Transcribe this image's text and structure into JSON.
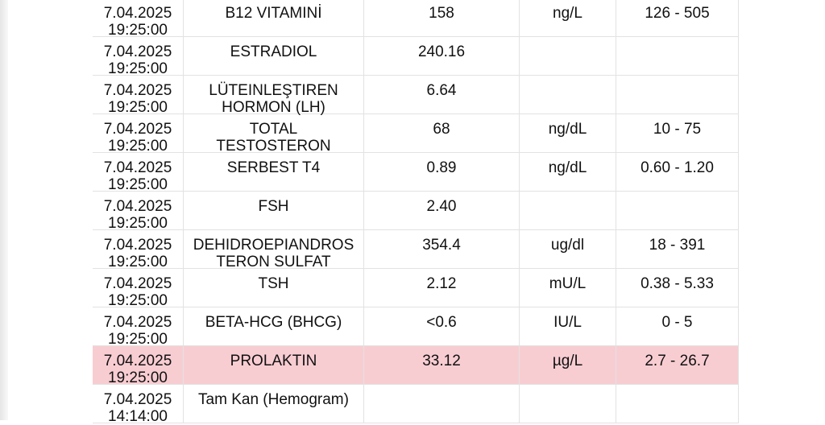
{
  "table": {
    "rows": [
      {
        "date": "7.04.2025",
        "time": "19:25:00",
        "test": [
          "B12  VITAMINİ"
        ],
        "value": "158",
        "unit": "ng/L",
        "range": "126 - 505"
      },
      {
        "date": "7.04.2025",
        "time": "19:25:00",
        "test": [
          "ESTRADIOL"
        ],
        "value": "240.16"
      },
      {
        "date": "7.04.2025",
        "time": "19:25:00",
        "test": [
          "LÜTEINLEŞTIREN",
          "HORMON (LH)"
        ],
        "value": "6.64"
      },
      {
        "date": "7.04.2025",
        "time": "19:25:00",
        "test": [
          "TOTAL",
          "TESTOSTERON"
        ],
        "value": "68",
        "unit": "ng/dL",
        "range": "10 - 75"
      },
      {
        "date": "7.04.2025",
        "time": "19:25:00",
        "test": [
          "SERBEST T4"
        ],
        "value": "0.89",
        "unit": "ng/dL",
        "range": "0.60 - 1.20"
      },
      {
        "date": "7.04.2025",
        "time": "19:25:00",
        "test": [
          "FSH"
        ],
        "value": "2.40"
      },
      {
        "date": "7.04.2025",
        "time": "19:25:00",
        "test": [
          "DEHIDROEPIANDROS",
          "TERON SULFAT"
        ],
        "value": "354.4",
        "unit": "ug/dl",
        "range": "18 - 391"
      },
      {
        "date": "7.04.2025",
        "time": "19:25:00",
        "test": [
          "TSH"
        ],
        "value": "2.12",
        "unit": "mU/L",
        "range": "0.38 - 5.33"
      },
      {
        "date": "7.04.2025",
        "time": "19:25:00",
        "test": [
          "BETA-HCG (BHCG)"
        ],
        "value": "<0.6",
        "unit": "IU/L",
        "range": "0 - 5"
      },
      {
        "date": "7.04.2025",
        "time": "19:25:00",
        "test": [
          "PROLAKTIN"
        ],
        "value": "33.12",
        "unit": "µg/L",
        "range": "2.7 - 26.7",
        "highlighted": true
      },
      {
        "date": "7.04.2025",
        "time": "14:14:00",
        "test": [
          "Tam Kan (Hemogram)"
        ]
      }
    ]
  }
}
